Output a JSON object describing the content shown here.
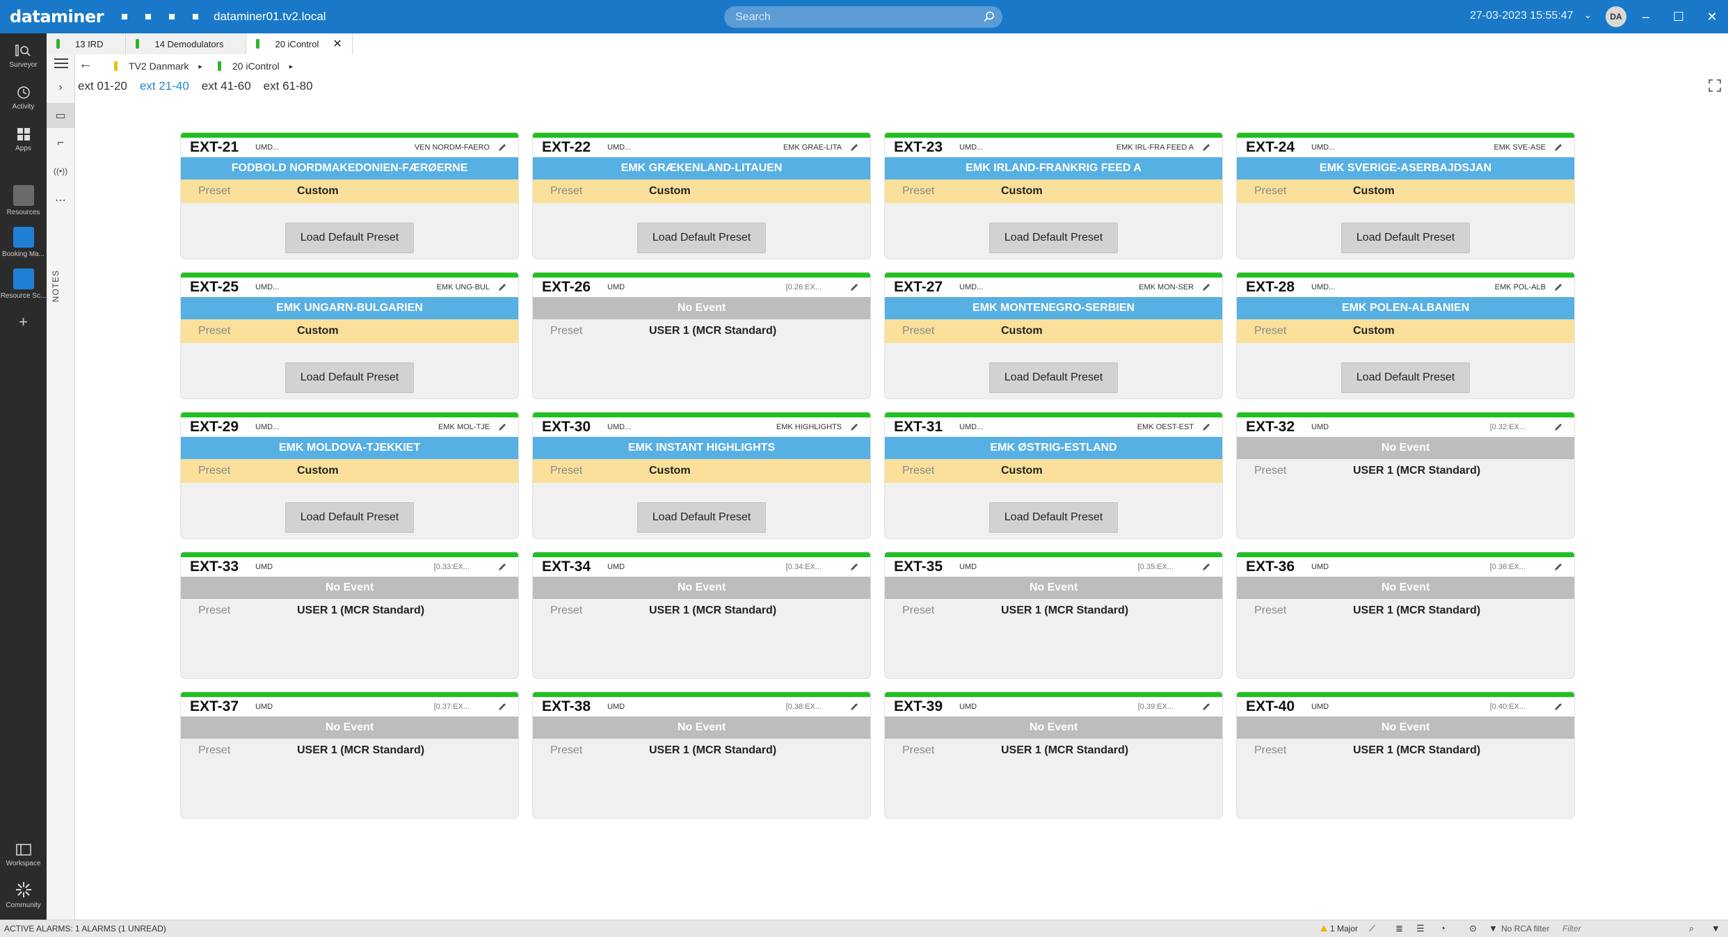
{
  "topbar": {
    "logo": "dataminer",
    "hostname": "dataminer01.tv2.local",
    "search_placeholder": "Search",
    "datetime": "27-03-2023 15:55:47",
    "avatar": "DA"
  },
  "rail": {
    "items": [
      {
        "label": "Surveyor",
        "icon": "surveyor-icon"
      },
      {
        "label": "Activity",
        "icon": "activity-icon"
      },
      {
        "label": "Apps",
        "icon": "apps-icon"
      },
      {
        "label": "Resources",
        "icon": "resources-icon"
      },
      {
        "label": "Booking Ma...",
        "icon": "booking-manager-icon"
      },
      {
        "label": "Resource Sc...",
        "icon": "resource-scheduling-icon"
      },
      {
        "label": "Workspace",
        "icon": "workspace-icon"
      },
      {
        "label": "Community",
        "icon": "community-icon"
      }
    ]
  },
  "subcol": {
    "notes": "NOTES"
  },
  "tabs": [
    {
      "label": "13 IRD"
    },
    {
      "label": "14 Demodulators"
    },
    {
      "label": "20 iControl"
    }
  ],
  "breadcrumb": {
    "root": "TV2 Danmark",
    "current": "20 iControl"
  },
  "ext_tabs": [
    "ext 01-20",
    "ext 21-40",
    "ext 41-60",
    "ext 61-80"
  ],
  "preset_label": "Preset",
  "load_button_label": "Load Default Preset",
  "cards": [
    {
      "name": "EXT-21",
      "umd": "UMD...",
      "right": "VEN NORDM-FAERO",
      "event": "FODBOLD NORDMAKEDONIEN-FÆRØERNE",
      "preset": "Custom"
    },
    {
      "name": "EXT-22",
      "umd": "UMD...",
      "right": "EMK GRAE-LITA",
      "event": "EMK GRÆKENLAND-LITAUEN",
      "preset": "Custom"
    },
    {
      "name": "EXT-23",
      "umd": "UMD...",
      "right": "EMK IRL-FRA FEED A",
      "event": "EMK IRLAND-FRANKRIG FEED A",
      "preset": "Custom"
    },
    {
      "name": "EXT-24",
      "umd": "UMD...",
      "right": "EMK SVE-ASE",
      "event": "EMK SVERIGE-ASERBAJDSJAN",
      "preset": "Custom"
    },
    {
      "name": "EXT-25",
      "umd": "UMD...",
      "right": "EMK UNG-BUL",
      "event": "EMK UNGARN-BULGARIEN",
      "preset": "Custom"
    },
    {
      "name": "EXT-26",
      "umd": "UMD",
      "right": "[0.26:EX...",
      "event": "No Event",
      "preset": "USER 1 (MCR Standard)"
    },
    {
      "name": "EXT-27",
      "umd": "UMD...",
      "right": "EMK MON-SER",
      "event": "EMK MONTENEGRO-SERBIEN",
      "preset": "Custom"
    },
    {
      "name": "EXT-28",
      "umd": "UMD...",
      "right": "EMK POL-ALB",
      "event": "EMK POLEN-ALBANIEN",
      "preset": "Custom"
    },
    {
      "name": "EXT-29",
      "umd": "UMD...",
      "right": "EMK MOL-TJE",
      "event": "EMK MOLDOVA-TJEKKIET",
      "preset": "Custom"
    },
    {
      "name": "EXT-30",
      "umd": "UMD...",
      "right": "EMK HIGHLIGHTS",
      "event": "EMK INSTANT HIGHLIGHTS",
      "preset": "Custom"
    },
    {
      "name": "EXT-31",
      "umd": "UMD...",
      "right": "EMK OEST-EST",
      "event": "EMK ØSTRIG-ESTLAND",
      "preset": "Custom"
    },
    {
      "name": "EXT-32",
      "umd": "UMD",
      "right": "[0.32:EX...",
      "event": "No Event",
      "preset": "USER 1 (MCR Standard)"
    },
    {
      "name": "EXT-33",
      "umd": "UMD",
      "right": "[0.33:EX...",
      "event": "No Event",
      "preset": "USER 1 (MCR Standard)"
    },
    {
      "name": "EXT-34",
      "umd": "UMD",
      "right": "[0.34:EX...",
      "event": "No Event",
      "preset": "USER 1 (MCR Standard)"
    },
    {
      "name": "EXT-35",
      "umd": "UMD",
      "right": "[0.35:EX...",
      "event": "No Event",
      "preset": "USER 1 (MCR Standard)"
    },
    {
      "name": "EXT-36",
      "umd": "UMD",
      "right": "[0.36:EX...",
      "event": "No Event",
      "preset": "USER 1 (MCR Standard)"
    },
    {
      "name": "EXT-37",
      "umd": "UMD",
      "right": "[0.37:EX...",
      "event": "No Event",
      "preset": "USER 1 (MCR Standard)"
    },
    {
      "name": "EXT-38",
      "umd": "UMD",
      "right": "[0.38:EX...",
      "event": "No Event",
      "preset": "USER 1 (MCR Standard)"
    },
    {
      "name": "EXT-39",
      "umd": "UMD",
      "right": "[0.39:EX...",
      "event": "No Event",
      "preset": "USER 1 (MCR Standard)"
    },
    {
      "name": "EXT-40",
      "umd": "UMD",
      "right": "[0.40:EX...",
      "event": "No Event",
      "preset": "USER 1 (MCR Standard)"
    }
  ],
  "statusbar": {
    "alarms": "ACTIVE ALARMS: 1 ALARMS (1 UNREAD)",
    "major": "1 Major",
    "rca": "No RCA filter",
    "filter_placeholder": "Filter"
  },
  "colors": {
    "topbar": "#1979c8",
    "card_ok": "#1fc01f",
    "event_live": "#57b0e4",
    "event_none": "#bdbdbd",
    "preset_custom": "#fbe09b"
  }
}
